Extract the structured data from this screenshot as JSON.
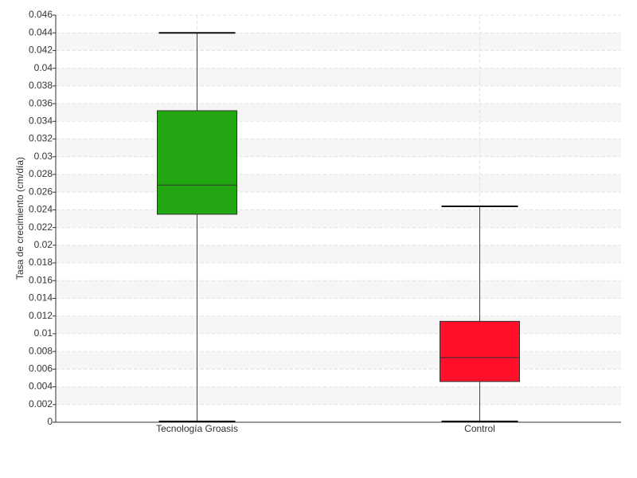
{
  "chart_data": {
    "type": "box",
    "y_label": "Tasa de crecimiento (cm/día)",
    "categories": [
      "Tecnología Groasis",
      "Control"
    ],
    "boxes": [
      {
        "min": 0,
        "q1": 0.0235,
        "median": 0.0268,
        "q3": 0.0352,
        "max": 0.044,
        "color": "#22a712"
      },
      {
        "min": 0,
        "q1": 0.0046,
        "median": 0.0073,
        "q3": 0.0114,
        "max": 0.0244,
        "color": "#ff0f2a"
      }
    ],
    "ylim": [
      0,
      0.046
    ],
    "yticks": [
      0,
      0.002,
      0.004,
      0.006,
      0.008,
      0.01,
      0.012,
      0.014,
      0.016,
      0.018,
      0.02,
      0.022,
      0.024,
      0.026,
      0.028,
      0.03,
      0.032,
      0.034,
      0.036,
      0.038,
      0.04,
      0.042,
      0.044,
      0.046
    ],
    "grid": true
  }
}
